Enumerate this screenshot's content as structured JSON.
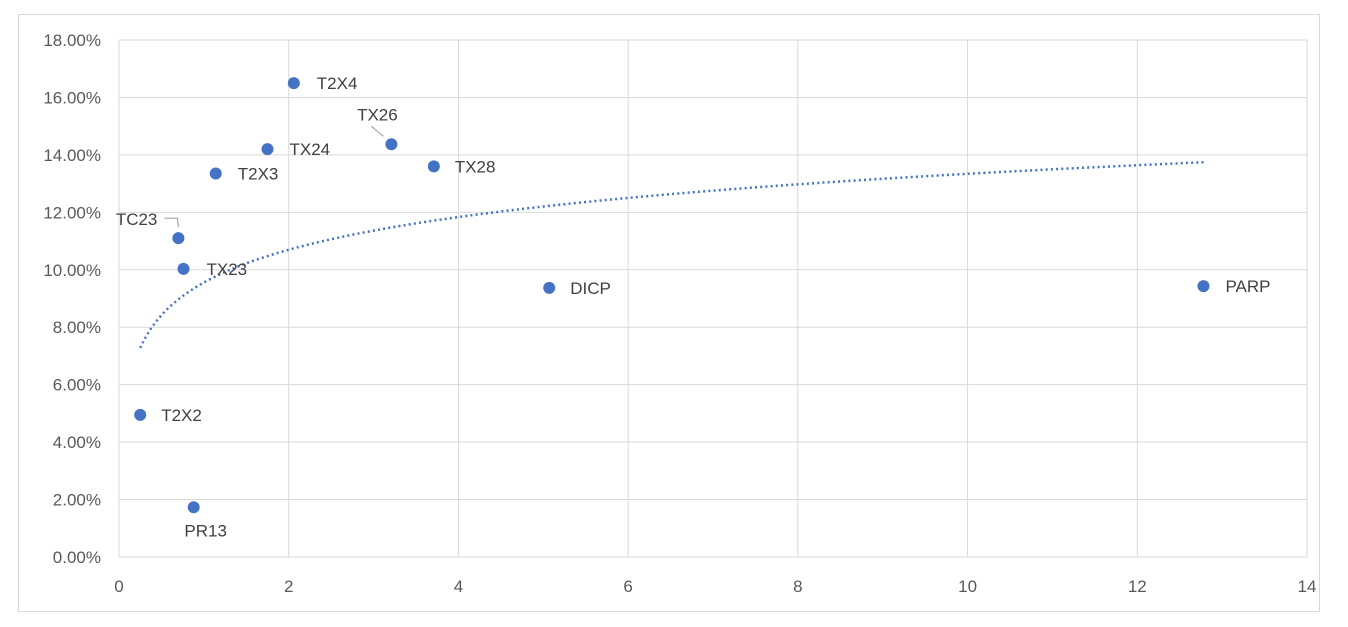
{
  "chart_data": {
    "type": "scatter",
    "title": "",
    "xlabel": "",
    "ylabel": "",
    "xlim": [
      0,
      14
    ],
    "ylim": [
      0,
      0.18
    ],
    "grid": true,
    "legend": "none",
    "x_ticks": [
      "0",
      "2",
      "4",
      "6",
      "8",
      "10",
      "12",
      "14"
    ],
    "y_ticks": [
      "0.00%",
      "2.00%",
      "4.00%",
      "6.00%",
      "8.00%",
      "10.00%",
      "12.00%",
      "14.00%",
      "16.00%",
      "18.00%"
    ],
    "points": [
      {
        "label": "T2X2",
        "x": 0.25,
        "y": 0.0495
      },
      {
        "label": "TC23",
        "x": 0.7,
        "y": 0.111
      },
      {
        "label": "TX23",
        "x": 0.76,
        "y": 0.1003
      },
      {
        "label": "PR13",
        "x": 0.88,
        "y": 0.0173
      },
      {
        "label": "T2X3",
        "x": 1.14,
        "y": 0.1335
      },
      {
        "label": "TX24",
        "x": 1.75,
        "y": 0.142
      },
      {
        "label": "T2X4",
        "x": 2.06,
        "y": 0.165
      },
      {
        "label": "TX26",
        "x": 3.21,
        "y": 0.1437
      },
      {
        "label": "TX28",
        "x": 3.71,
        "y": 0.136
      },
      {
        "label": "DICP",
        "x": 5.07,
        "y": 0.0937
      },
      {
        "label": "PARP",
        "x": 12.78,
        "y": 0.0943
      }
    ],
    "trendline": {
      "type": "logarithmic",
      "style": "dotted",
      "a": 0.09558,
      "b": 0.01643,
      "x_range": [
        0.25,
        12.78
      ]
    },
    "colors": {
      "marker": "#4472c4",
      "trendline": "#4472c4",
      "grid": "#d9d9d9"
    }
  }
}
